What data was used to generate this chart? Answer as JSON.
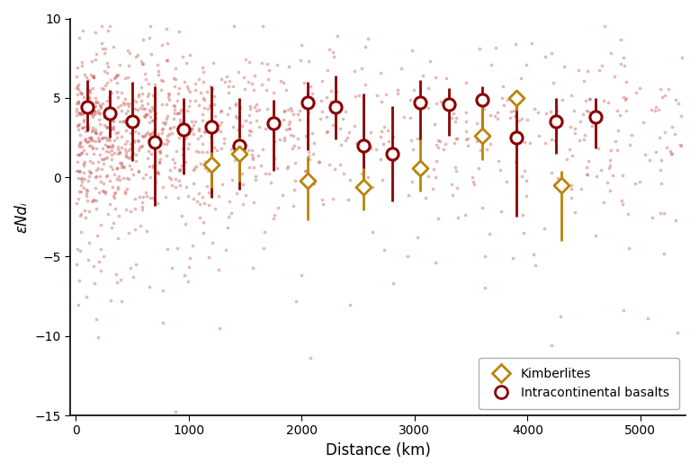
{
  "xlabel": "Distance (km)",
  "ylabel": "εNdᵢ",
  "xlim": [
    -50,
    5400
  ],
  "ylim": [
    -15,
    10
  ],
  "yticks": [
    -15,
    -10,
    -5,
    0,
    5,
    10
  ],
  "xticks": [
    0,
    1000,
    2000,
    3000,
    4000,
    5000
  ],
  "scatter_color": "#c0504d",
  "scatter_alpha": 0.4,
  "scatter_size": 7,
  "basalt_marker_color": "#8b0000",
  "basalt_errbar_color": "#8b0000",
  "kimb_marker_color": "#b8860b",
  "kimb_errbar_color": "#b8860b",
  "basalt_bins": [
    100,
    300,
    500,
    700,
    950,
    1200,
    1450,
    1750,
    2050,
    2300,
    2550,
    2800,
    3050,
    3300,
    3600,
    3900,
    4250,
    4600
  ],
  "basalt_means": [
    4.4,
    4.0,
    3.5,
    2.2,
    3.0,
    3.2,
    2.0,
    3.4,
    4.7,
    4.4,
    2.0,
    1.5,
    4.7,
    4.6,
    4.9,
    2.5,
    3.5,
    3.8
  ],
  "basalt_errs_upper": [
    1.7,
    1.5,
    2.5,
    3.5,
    2.0,
    2.5,
    3.0,
    1.5,
    1.3,
    2.0,
    3.3,
    3.0,
    1.4,
    1.0,
    0.8,
    3.0,
    1.5,
    1.2
  ],
  "basalt_errs_lower": [
    1.5,
    1.5,
    2.5,
    4.0,
    2.8,
    4.5,
    2.8,
    3.0,
    3.0,
    2.0,
    3.0,
    3.0,
    2.4,
    2.0,
    2.5,
    5.0,
    2.0,
    2.0
  ],
  "kimb_bins": [
    1200,
    1450,
    2050,
    2550,
    3050,
    3600,
    3900,
    4300
  ],
  "kimb_means": [
    0.8,
    1.5,
    -0.2,
    -0.6,
    0.6,
    2.6,
    5.0,
    -0.5
  ],
  "kimb_errs_upper": [
    0.8,
    1.0,
    1.5,
    1.2,
    1.8,
    2.5,
    0.4,
    0.9
  ],
  "kimb_errs_lower": [
    1.5,
    1.8,
    2.5,
    1.5,
    1.5,
    1.5,
    0.8,
    3.5
  ],
  "figsize": [
    7.77,
    5.25
  ],
  "dpi": 100
}
